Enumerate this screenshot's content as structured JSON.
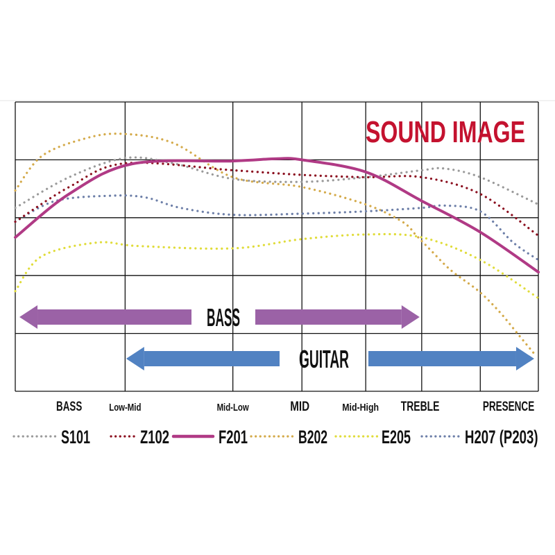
{
  "chart_data": {
    "type": "line",
    "title": "SOUND IMAGE",
    "title_color": "#c4122f",
    "xlabel": "",
    "ylabel": "",
    "xlim": [
      0,
      100
    ],
    "ylim": [
      0,
      5
    ],
    "grid": true,
    "x_gridlines": [
      0,
      21,
      41.6,
      54.8,
      67,
      77.7,
      88.9,
      100
    ],
    "y_gridlines": [
      0,
      1,
      2,
      3,
      4,
      5
    ],
    "x_tick_labels": [
      {
        "text": "BASS",
        "x": 10.3,
        "size": "large"
      },
      {
        "text": "Low-Mid",
        "x": 21,
        "size": "small"
      },
      {
        "text": "Mid-Low",
        "x": 41.6,
        "size": "small"
      },
      {
        "text": "MID",
        "x": 54.4,
        "size": "large"
      },
      {
        "text": "Mid-High",
        "x": 66,
        "size": "small"
      },
      {
        "text": "TREBLE",
        "x": 77.4,
        "size": "large"
      },
      {
        "text": "PRESENCE",
        "x": 94.3,
        "size": "large"
      }
    ],
    "ranges": [
      {
        "label": "BASS",
        "from": 0.8,
        "to": 77.3,
        "color": "#9b62a6"
      },
      {
        "label": "GUITAR",
        "from": 21.2,
        "to": 99.2,
        "color": "#5182c2"
      }
    ],
    "legend_position": "bottom",
    "series": [
      {
        "name": "S101",
        "color": "#9a9a9a",
        "style": "dotted",
        "x": [
          0,
          10.3,
          21,
          30.2,
          41.6,
          54.8,
          67,
          77.7,
          82,
          88.9,
          100
        ],
        "y": [
          3.17,
          3.7,
          4.03,
          3.94,
          3.67,
          3.62,
          3.7,
          3.82,
          3.85,
          3.7,
          3.23
        ]
      },
      {
        "name": "Z102",
        "color": "#8b0f1f",
        "style": "dotted",
        "x": [
          0,
          10.3,
          21,
          41.6,
          54.8,
          67,
          77.7,
          88.9,
          100
        ],
        "y": [
          2.93,
          3.53,
          3.94,
          3.82,
          3.74,
          3.7,
          3.7,
          3.41,
          2.69
        ]
      },
      {
        "name": "F201",
        "color": "#b03a85",
        "style": "solid",
        "x": [
          0,
          10.3,
          22.3,
          41.6,
          50.1,
          54.8,
          67,
          77.7,
          88.9,
          100
        ],
        "y": [
          2.66,
          3.41,
          3.93,
          3.98,
          4.02,
          4.0,
          3.79,
          3.29,
          2.75,
          2.06
        ]
      },
      {
        "name": "B202",
        "color": "#d4aa4a",
        "style": "dotted",
        "x": [
          0,
          5,
          13,
          20.3,
          30.2,
          41.6,
          54.8,
          67,
          74,
          76.7,
          79.3,
          83.3,
          88.6,
          92.6,
          95.9,
          99.2
        ],
        "y": [
          3.47,
          4.06,
          4.36,
          4.45,
          4.29,
          3.7,
          3.53,
          3.23,
          2.93,
          2.69,
          2.45,
          2.09,
          1.73,
          1.37,
          1.01,
          0.65
        ]
      },
      {
        "name": "E205",
        "color": "#e0dc3a",
        "style": "dotted",
        "x": [
          0,
          5,
          15.6,
          23.6,
          41.6,
          54.8,
          67,
          77.7,
          88.9,
          100
        ],
        "y": [
          1.73,
          2.33,
          2.57,
          2.51,
          2.47,
          2.63,
          2.71,
          2.66,
          2.27,
          1.61
        ]
      },
      {
        "name": "H207 (P203)",
        "color": "#6d7fa8",
        "style": "dotted",
        "x": [
          0,
          7.7,
          18.3,
          24.9,
          31.6,
          41.6,
          54.8,
          67,
          77.7,
          82,
          88.9,
          95.2,
          100
        ],
        "y": [
          2.93,
          3.29,
          3.38,
          3.35,
          3.17,
          3.05,
          3.07,
          3.11,
          3.17,
          3.21,
          3.11,
          2.57,
          2.27
        ]
      }
    ]
  }
}
